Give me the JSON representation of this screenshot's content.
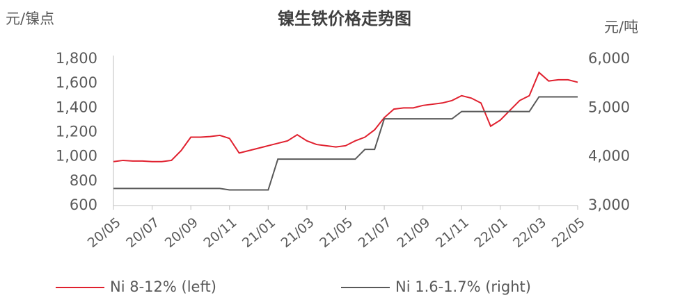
{
  "chart_data": {
    "type": "line",
    "title": "镍生铁价格走势图",
    "y_label": "元/镍点",
    "y2_label": "元/吨",
    "categories": [
      "20/05",
      null,
      null,
      null,
      "20/07",
      null,
      null,
      null,
      "20/09",
      null,
      null,
      null,
      "20/11",
      null,
      null,
      null,
      "21/01",
      null,
      null,
      null,
      "21/03",
      null,
      null,
      null,
      "21/05",
      null,
      null,
      null,
      "21/07",
      null,
      null,
      null,
      "21/09",
      null,
      null,
      null,
      "21/11",
      null,
      null,
      null,
      "22/01",
      null,
      null,
      null,
      "22/03",
      null,
      null,
      null,
      "22/05"
    ],
    "series": [
      {
        "name": "Ni 8-12% (left)",
        "color": "#e0202e",
        "axis": "y",
        "values": [
          960,
          970,
          965,
          965,
          960,
          960,
          970,
          1050,
          1160,
          1160,
          1165,
          1175,
          1150,
          1030,
          1050,
          1070,
          1090,
          1110,
          1130,
          1180,
          1130,
          1100,
          1090,
          1080,
          1090,
          1130,
          1160,
          1220,
          1320,
          1390,
          1400,
          1400,
          1420,
          1430,
          1440,
          1460,
          1500,
          1480,
          1440,
          1250,
          1300,
          1380,
          1460,
          1500,
          1690,
          1620,
          1630,
          1630,
          1610
        ]
      },
      {
        "name": "Ni 1.6-1.7% (right)",
        "color": "#595959",
        "axis": "y2",
        "values": [
          3350,
          3350,
          3350,
          3350,
          3350,
          3350,
          3350,
          3350,
          3350,
          3350,
          3350,
          3350,
          3320,
          3320,
          3320,
          3320,
          3320,
          3950,
          3950,
          3950,
          3950,
          3950,
          3950,
          3950,
          3950,
          3950,
          4150,
          4150,
          4775,
          4775,
          4775,
          4775,
          4775,
          4775,
          4775,
          4775,
          4925,
          4925,
          4925,
          4925,
          4925,
          4925,
          4925,
          4925,
          5225,
          5225,
          5225,
          5225,
          5225
        ]
      }
    ],
    "ylim": [
      600,
      1800
    ],
    "yticks": [
      600,
      800,
      {
        "value": 1000,
        "label": "1,000"
      },
      {
        "value": 1200,
        "label": "1,200"
      },
      {
        "value": 1400,
        "label": "1,400"
      },
      {
        "value": 1600,
        "label": "1,600"
      },
      {
        "value": 1800,
        "label": "1,800"
      }
    ],
    "y2lim": [
      3000,
      6000
    ],
    "y2ticks": [
      {
        "value": 3000,
        "label": "3,000"
      },
      {
        "value": 4000,
        "label": "4,000"
      },
      {
        "value": 5000,
        "label": "5,000"
      },
      {
        "value": 6000,
        "label": "6,000"
      }
    ],
    "legend": "bottom"
  }
}
